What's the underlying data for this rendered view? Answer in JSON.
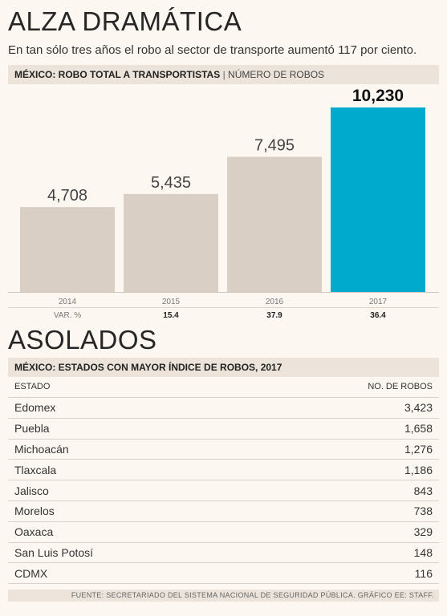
{
  "header": {
    "title": "ALZA DRAMÁTICA",
    "subtitle": "En tan sólo tres años el robo al sector de transporte aumentó 117 por ciento."
  },
  "section1": {
    "label_bold": "MÉXICO: ROBO TOTAL A TRANSPORTISTAS",
    "separator": "|",
    "label_unit": "NÚMERO DE ROBOS"
  },
  "chart_data": {
    "type": "bar",
    "categories": [
      "2014",
      "2015",
      "2016",
      "2017"
    ],
    "values": [
      4708,
      5435,
      7495,
      10230
    ],
    "value_labels": [
      "4,708",
      "5,435",
      "7,495",
      "10,230"
    ],
    "var_label": "VAR. %",
    "var_values": [
      "",
      "15.4",
      "37.9",
      "36.4"
    ],
    "highlight_index": 3,
    "ylim": [
      0,
      10230
    ],
    "bar_color": "#d9cfc4",
    "highlight_color": "#00aacc",
    "title": "",
    "xlabel": "",
    "ylabel": ""
  },
  "section2": {
    "title": "ASOLADOS",
    "label_bold": "MÉXICO: ESTADOS CON MAYOR ÍNDICE DE ROBOS, 2017"
  },
  "table": {
    "col_state": "ESTADO",
    "col_robos": "NO. DE ROBOS",
    "rows": [
      {
        "estado": "Edomex",
        "robos": "3,423"
      },
      {
        "estado": "Puebla",
        "robos": "1,658"
      },
      {
        "estado": "Michoacán",
        "robos": "1,276"
      },
      {
        "estado": "Tlaxcala",
        "robos": "1,186"
      },
      {
        "estado": "Jalisco",
        "robos": "843"
      },
      {
        "estado": "Morelos",
        "robos": "738"
      },
      {
        "estado": "Oaxaca",
        "robos": "329"
      },
      {
        "estado": "San Luis Potosí",
        "robos": "148"
      },
      {
        "estado": "CDMX",
        "robos": "116"
      }
    ]
  },
  "footer": {
    "source": "FUENTE: SECRETARIADO DEL SISTEMA NACIONAL DE SEGURIDAD PÚBLICA. GRÁFICO EE: STAFF."
  }
}
